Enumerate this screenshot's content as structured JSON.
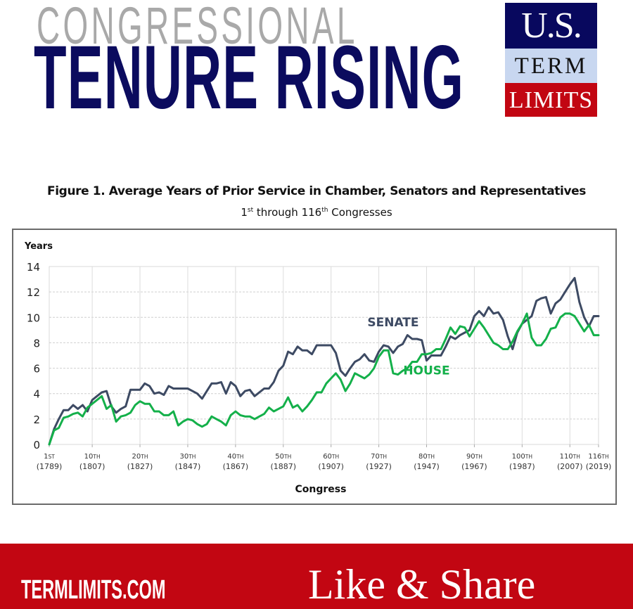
{
  "header": {
    "kicker": "CONGRESSIONAL",
    "headline": "TENURE RISING"
  },
  "logo": {
    "line1": "U.S.",
    "line2": "TERM",
    "line3": "LIMITS",
    "colors": {
      "navy": "#08085e",
      "light_blue": "#c8d7f0",
      "red": "#c20612"
    }
  },
  "figure": {
    "title": "Figure 1. Average Years of Prior Service in Chamber, Senators and Representatives",
    "subtitle_parts": [
      "1",
      "st",
      " through 116",
      "th",
      " Congresses"
    ]
  },
  "footer": {
    "site": "TERMLIMITS.COM",
    "cta": "Like & Share",
    "bg_color": "#c20612"
  },
  "chart_data": {
    "type": "line",
    "title": "Figure 1. Average Years of Prior Service in Chamber, Senators and Representatives",
    "subtitle": "1st through 116th Congresses",
    "xlabel": "Congress",
    "ylabel": "Years",
    "ylim": [
      0,
      14
    ],
    "yticks": [
      0,
      2,
      4,
      6,
      8,
      10,
      12,
      14
    ],
    "xlim": [
      1,
      116
    ],
    "xticks": [
      {
        "congress": 1,
        "label": "1ST",
        "year": "(1789)"
      },
      {
        "congress": 10,
        "label": "10TH",
        "year": "(1807)"
      },
      {
        "congress": 20,
        "label": "20TH",
        "year": "(1827)"
      },
      {
        "congress": 30,
        "label": "30TH",
        "year": "(1847)"
      },
      {
        "congress": 40,
        "label": "40TH",
        "year": "(1867)"
      },
      {
        "congress": 50,
        "label": "50TH",
        "year": "(1887)"
      },
      {
        "congress": 60,
        "label": "60TH",
        "year": "(1907)"
      },
      {
        "congress": 70,
        "label": "70TH",
        "year": "(1927)"
      },
      {
        "congress": 80,
        "label": "80TH",
        "year": "(1947)"
      },
      {
        "congress": 90,
        "label": "90TH",
        "year": "(1967)"
      },
      {
        "congress": 100,
        "label": "100TH",
        "year": "(1987)"
      },
      {
        "congress": 110,
        "label": "110TH",
        "year": "(2007)"
      },
      {
        "congress": 116,
        "label": "116TH",
        "year": "(2019)"
      }
    ],
    "grid": {
      "horizontal": "dashed",
      "vertical": "solid"
    },
    "legend": "inline labels",
    "annotations": [
      {
        "text": "SENATE",
        "congress": 73,
        "value": 9.3,
        "color": "#3d4a63"
      },
      {
        "text": "HOUSE",
        "congress": 80,
        "value": 5.5,
        "color": "#14b04a"
      }
    ],
    "series": [
      {
        "name": "SENATE",
        "color": "#3d4a63",
        "values": [
          0,
          1.2,
          2.0,
          2.7,
          2.7,
          3.1,
          2.8,
          3.1,
          2.6,
          3.5,
          3.8,
          4.1,
          4.2,
          3.0,
          2.5,
          2.8,
          3.0,
          4.3,
          4.3,
          4.3,
          4.8,
          4.6,
          4.0,
          4.1,
          3.9,
          4.6,
          4.4,
          4.4,
          4.4,
          4.4,
          4.2,
          4.0,
          3.6,
          4.2,
          4.8,
          4.8,
          4.9,
          4.0,
          4.9,
          4.6,
          3.8,
          4.2,
          4.3,
          3.8,
          4.1,
          4.4,
          4.4,
          4.9,
          5.8,
          6.2,
          7.3,
          7.1,
          7.7,
          7.4,
          7.4,
          7.1,
          7.8,
          7.8,
          7.8,
          7.8,
          7.2,
          5.8,
          5.4,
          6.0,
          6.5,
          6.7,
          7.1,
          6.6,
          6.5,
          7.3,
          7.8,
          7.7,
          7.2,
          7.7,
          7.9,
          8.6,
          8.3,
          8.3,
          8.2,
          6.6,
          7.0,
          7.0,
          7.0,
          7.7,
          8.5,
          8.3,
          8.6,
          8.8,
          9.0,
          10.1,
          10.5,
          10.1,
          10.8,
          10.3,
          10.4,
          9.8,
          8.5,
          7.5,
          8.8,
          9.5,
          9.8,
          10.1,
          11.3,
          11.5,
          11.6,
          10.3,
          11.1,
          11.4,
          12.0,
          12.6,
          13.1,
          11.2,
          10.0,
          9.3,
          10.1,
          10.1
        ]
      },
      {
        "name": "HOUSE",
        "color": "#14b04a",
        "values": [
          0,
          1.1,
          1.3,
          2.1,
          2.2,
          2.4,
          2.5,
          2.2,
          2.9,
          3.2,
          3.5,
          3.8,
          2.8,
          3.1,
          1.8,
          2.2,
          2.3,
          2.5,
          3.1,
          3.4,
          3.2,
          3.2,
          2.6,
          2.6,
          2.3,
          2.3,
          2.6,
          1.5,
          1.8,
          2.0,
          1.9,
          1.6,
          1.4,
          1.6,
          2.2,
          2.0,
          1.8,
          1.5,
          2.3,
          2.6,
          2.3,
          2.2,
          2.2,
          2.0,
          2.2,
          2.4,
          2.9,
          2.6,
          2.8,
          3.0,
          3.7,
          2.9,
          3.1,
          2.6,
          3.0,
          3.5,
          4.1,
          4.1,
          4.8,
          5.2,
          5.6,
          5.1,
          4.2,
          4.8,
          5.6,
          5.4,
          5.2,
          5.5,
          6.0,
          6.9,
          7.4,
          7.4,
          5.6,
          5.5,
          5.8,
          6.0,
          6.5,
          6.5,
          7.1,
          7.1,
          7.2,
          7.5,
          7.5,
          8.3,
          9.2,
          8.7,
          9.3,
          9.2,
          8.5,
          9.1,
          9.7,
          9.2,
          8.6,
          8.0,
          7.8,
          7.5,
          7.5,
          8.1,
          8.9,
          9.5,
          10.3,
          8.4,
          7.8,
          7.8,
          8.3,
          9.1,
          9.2,
          10.0,
          10.3,
          10.3,
          10.1,
          9.5,
          8.9,
          9.4,
          8.6,
          8.6
        ]
      }
    ]
  }
}
